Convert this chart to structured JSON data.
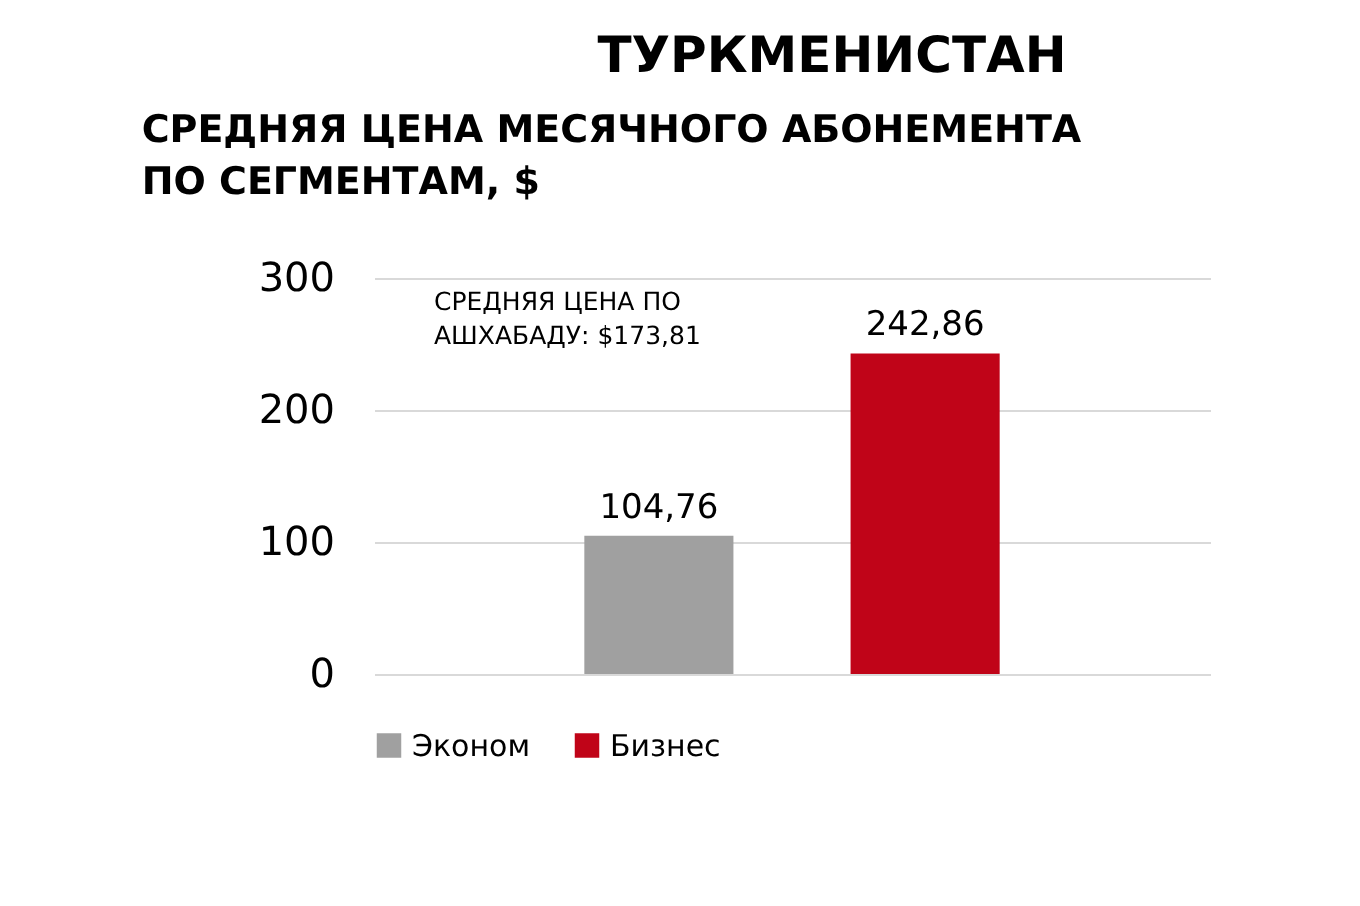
{
  "chart_data": {
    "type": "bar",
    "title": "ТУРКМЕНИСТАН",
    "subtitle": "СРЕДНЯЯ ЦЕНА МЕСЯЧНОГО АБОНЕМЕНТА ПО СЕГМЕНТАМ, $",
    "categories": [
      null,
      null
    ],
    "series": [
      {
        "name": "Эконом",
        "color": "#a0a0a0",
        "values": [
          104.76,
          null
        ]
      },
      {
        "name": "Бизнес",
        "color": "#c00418",
        "values": [
          null,
          242.86
        ]
      }
    ],
    "value_labels": [
      "104,76",
      "242,86"
    ],
    "annotations": [
      "СРЕДНЯЯ ЦЕНА ПО АШХАБАДУ: $173,81"
    ],
    "ylim": [
      0,
      300
    ],
    "yticks": [
      0,
      100,
      200,
      300
    ],
    "grid": "y",
    "legend": "bottom"
  }
}
